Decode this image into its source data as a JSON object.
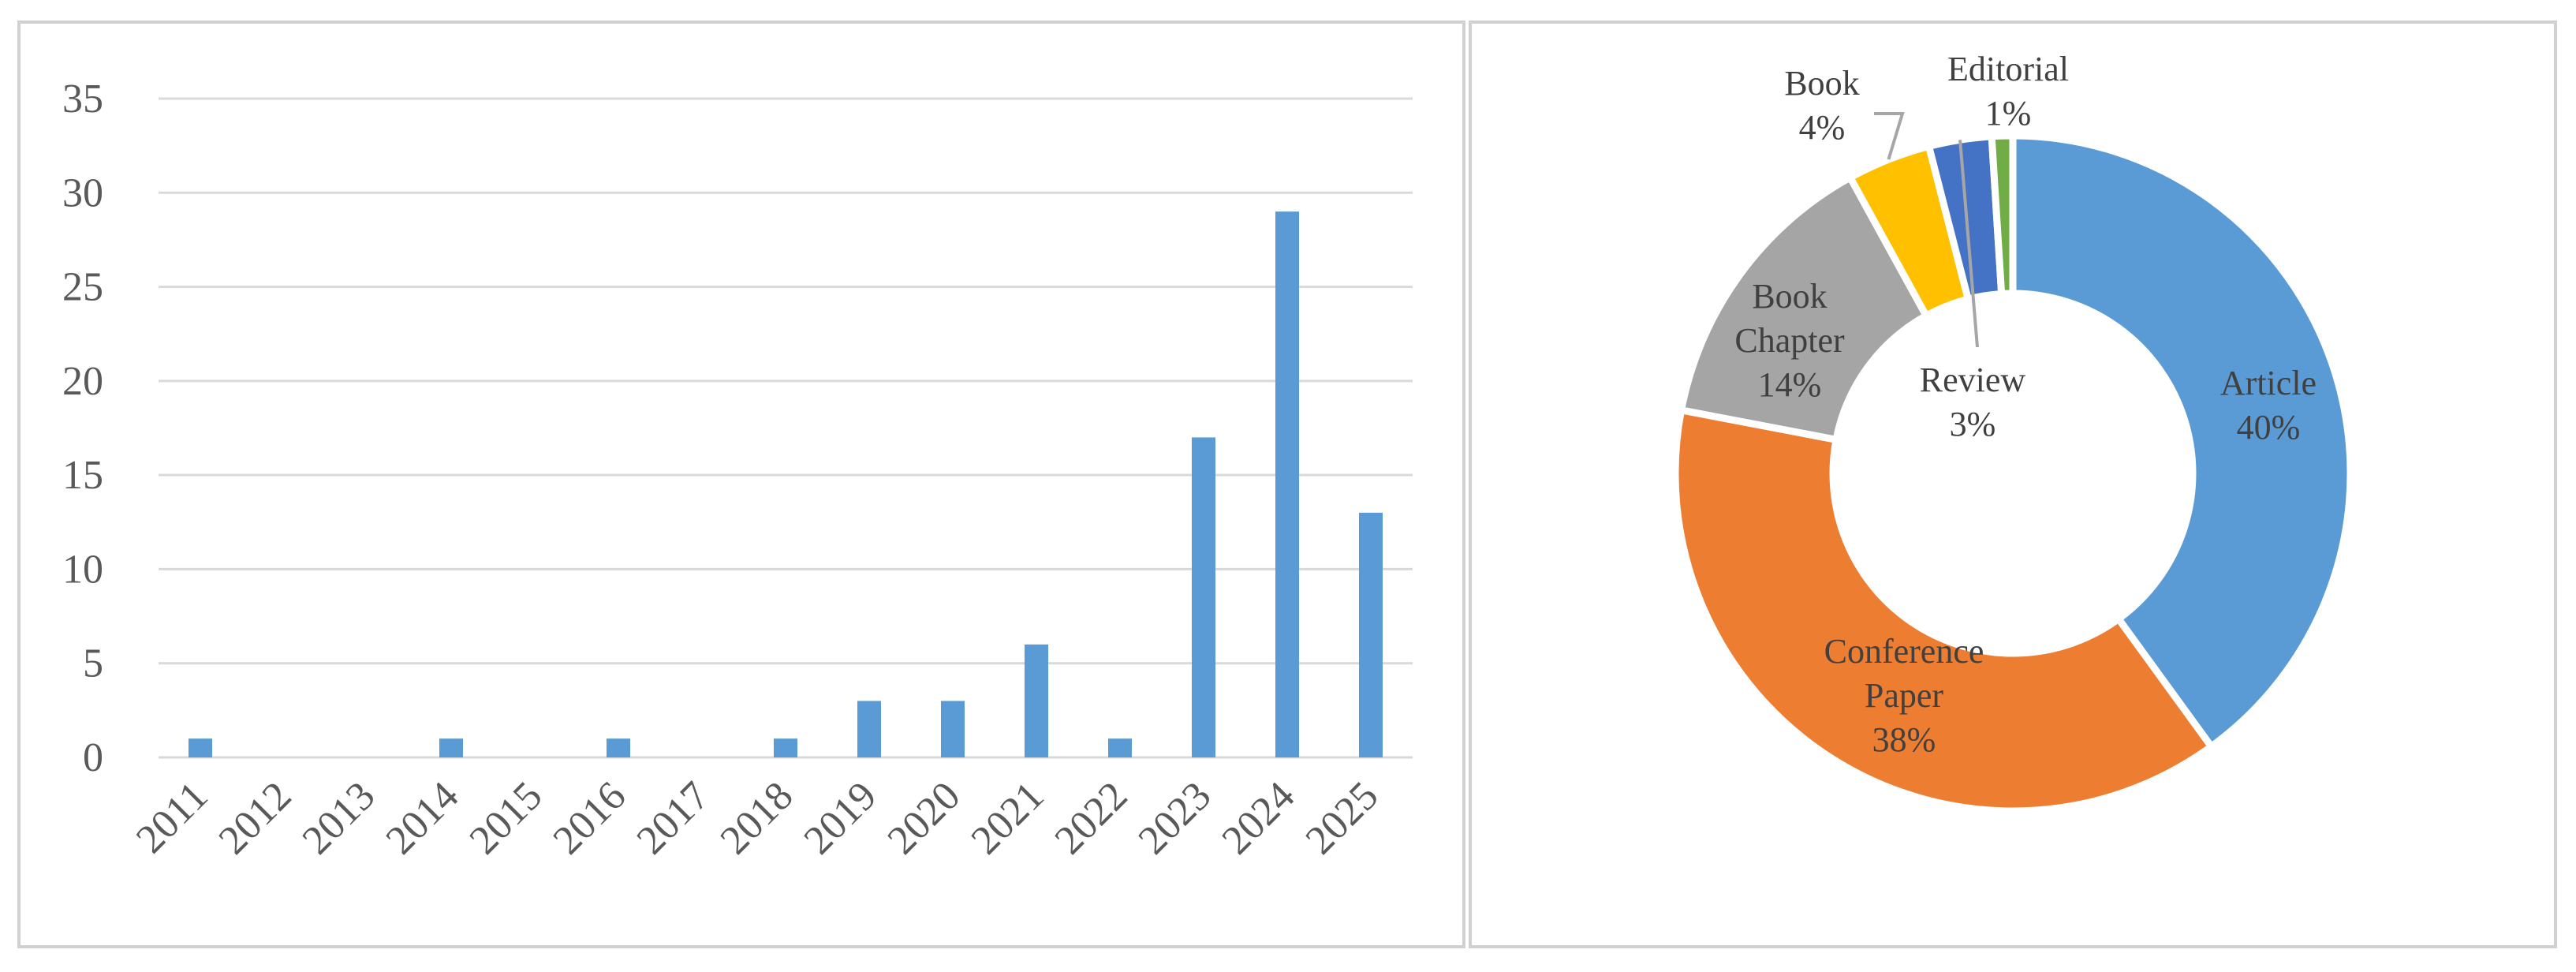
{
  "chart_data": [
    {
      "type": "bar",
      "title": "",
      "xlabel": "",
      "ylabel": "",
      "ylim": [
        0,
        35
      ],
      "yticks": [
        0,
        5,
        10,
        15,
        20,
        25,
        30,
        35
      ],
      "grid": true,
      "legend": "none",
      "bar_color": "#5b9bd5",
      "grid_color": "#d9d9d9",
      "categories": [
        "2011",
        "2012",
        "2013",
        "2014",
        "2015",
        "2016",
        "2017",
        "2018",
        "2019",
        "2020",
        "2021",
        "2022",
        "2023",
        "2024",
        "2025"
      ],
      "values": [
        1,
        0,
        0,
        1,
        0,
        1,
        0,
        1,
        3,
        3,
        6,
        1,
        17,
        29,
        13
      ]
    },
    {
      "type": "pie",
      "variant": "donut",
      "title": "",
      "legend": "none",
      "slices": [
        {
          "label": "Article",
          "percent_label": "40%",
          "value": 40,
          "color": "#5b9bd5"
        },
        {
          "label": "Conference Paper",
          "percent_label": "38%",
          "value": 38,
          "color": "#ed7d31"
        },
        {
          "label": "Book Chapter",
          "percent_label": "14%",
          "value": 14,
          "color": "#a5a5a5"
        },
        {
          "label": "Book",
          "percent_label": "4%",
          "value": 4,
          "color": "#ffc000"
        },
        {
          "label": "Review",
          "percent_label": "3%",
          "value": 3,
          "color": "#4472c4"
        },
        {
          "label": "Editorial",
          "percent_label": "1%",
          "value": 1,
          "color": "#70ad47"
        }
      ]
    }
  ]
}
